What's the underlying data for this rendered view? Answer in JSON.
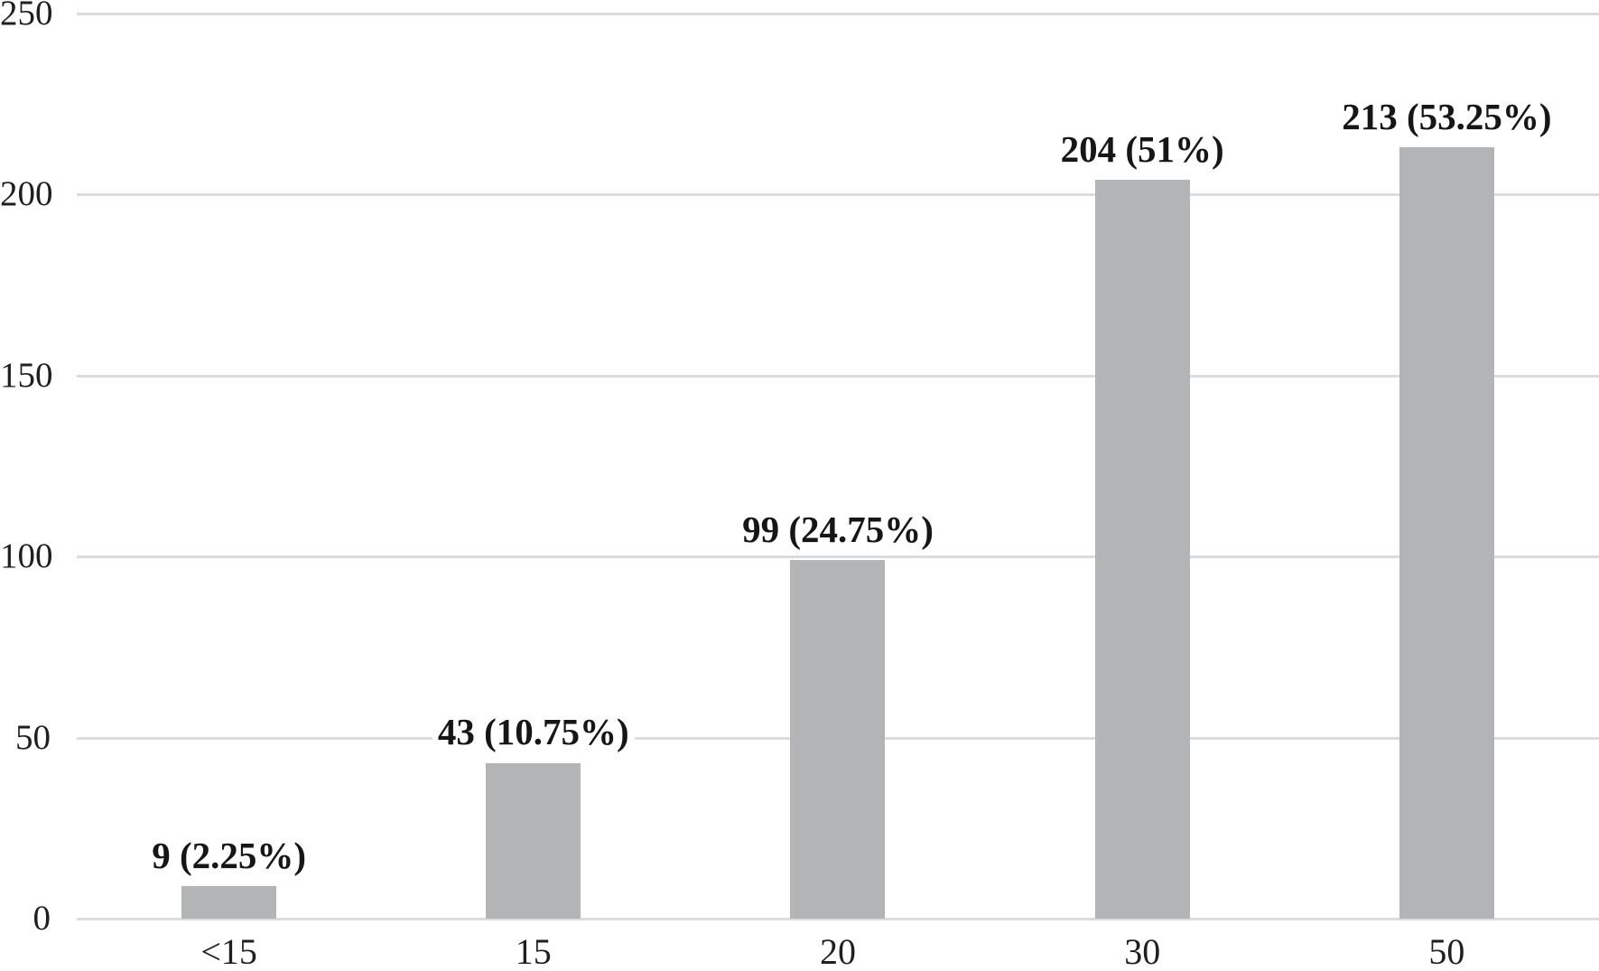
{
  "chart_data": {
    "type": "bar",
    "categories": [
      "<15",
      "15",
      "20",
      "30",
      "50"
    ],
    "values": [
      9,
      43,
      99,
      204,
      213
    ],
    "bar_labels": [
      "9 (2.25%)",
      "43 (10.75%)",
      "99 (24.75%)",
      "204 (51%)",
      "213 (53.25%)"
    ],
    "title": "",
    "xlabel": "",
    "ylabel": "",
    "ylim": [
      0,
      250
    ],
    "yticks": [
      0,
      50,
      100,
      150,
      200,
      250
    ],
    "grid": true,
    "legend": "none",
    "colors": {
      "bar": "#b3b4b6",
      "gridline": "#dbdcde",
      "axis_line": "#dbdcde",
      "tick_text": "#1f1f1f",
      "label_text": "#161616",
      "background": "#ffffff"
    }
  }
}
